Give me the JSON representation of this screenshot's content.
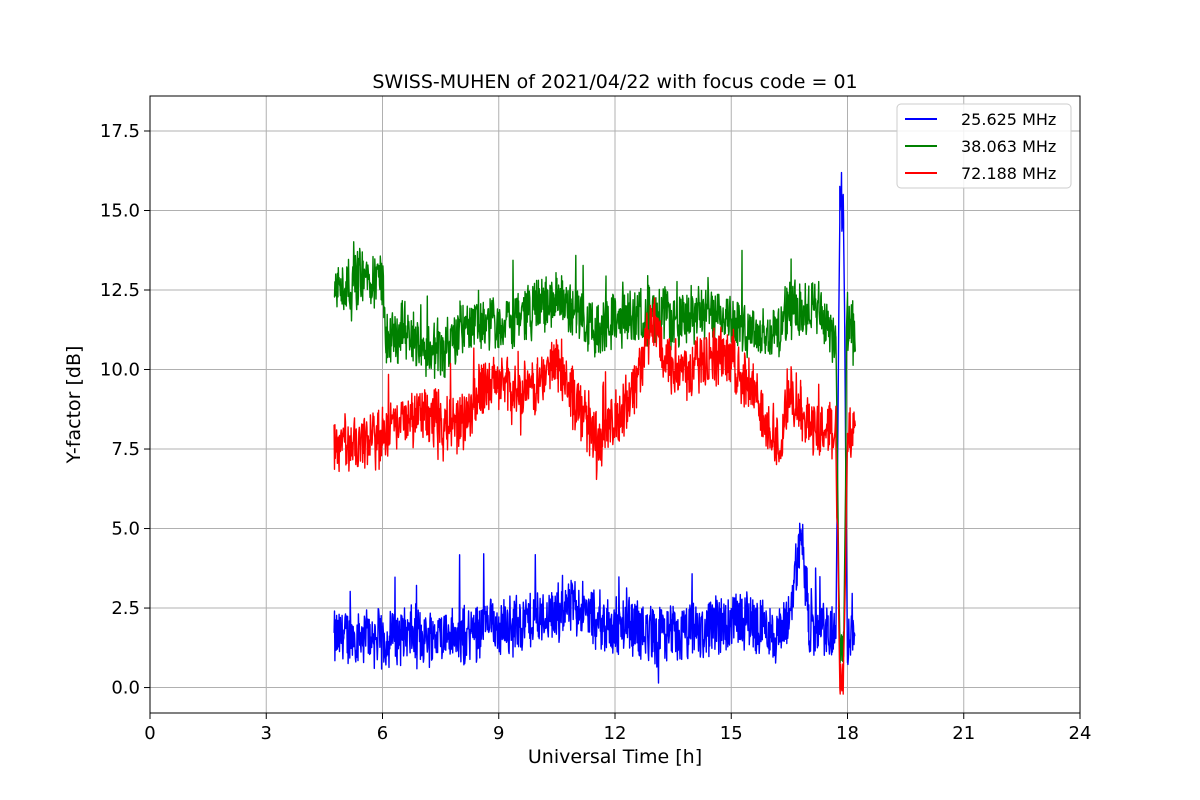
{
  "chart_data": {
    "type": "line",
    "title": "SWISS-MUHEN of 2021/04/22 with focus code = 01",
    "xlabel": "Universal Time [h]",
    "ylabel": "Y-factor [dB]",
    "xlim": [
      0,
      24
    ],
    "ylim": [
      -0.8,
      18.6
    ],
    "xticks": [
      0,
      3,
      6,
      9,
      12,
      15,
      18,
      21,
      24
    ],
    "xtick_labels": [
      "0",
      "3",
      "6",
      "9",
      "12",
      "15",
      "18",
      "21",
      "24"
    ],
    "yticks": [
      0,
      2.5,
      5,
      7.5,
      10,
      12.5,
      15,
      17.5
    ],
    "ytick_labels": [
      "0.0",
      "2.5",
      "5.0",
      "7.5",
      "10.0",
      "12.5",
      "15.0",
      "17.5"
    ],
    "grid": true,
    "legend_position": "top-right",
    "series": [
      {
        "name": "25.625 MHz",
        "color": "#0000ff",
        "x": [
          4.75,
          5.0,
          5.5,
          6.0,
          6.5,
          7.0,
          7.5,
          8.0,
          8.5,
          9.0,
          9.5,
          10.0,
          10.5,
          11.0,
          11.5,
          12.0,
          12.5,
          13.0,
          13.5,
          14.0,
          14.5,
          15.0,
          15.5,
          16.0,
          16.3,
          16.5,
          16.8,
          17.0,
          17.5,
          17.7,
          17.8,
          17.9,
          18.0,
          18.1,
          18.2
        ],
        "y": [
          1.5,
          1.6,
          1.7,
          1.5,
          1.7,
          1.6,
          1.7,
          1.5,
          1.9,
          2.0,
          2.0,
          2.2,
          2.4,
          2.6,
          2.1,
          1.9,
          1.9,
          1.7,
          1.6,
          1.7,
          1.8,
          2.2,
          2.1,
          1.8,
          1.6,
          2.2,
          4.8,
          1.8,
          1.9,
          1.6,
          15.2,
          15.0,
          1.5,
          2.0,
          2.1
        ]
      },
      {
        "name": "38.063 MHz",
        "color": "#008000",
        "x": [
          4.75,
          5.0,
          5.5,
          6.0,
          6.1,
          6.5,
          7.0,
          7.5,
          8.0,
          8.5,
          9.0,
          9.5,
          10.0,
          10.5,
          11.0,
          11.5,
          12.0,
          12.5,
          13.0,
          13.5,
          14.0,
          14.5,
          15.0,
          15.5,
          16.0,
          16.3,
          16.5,
          16.8,
          17.0,
          17.5,
          17.7,
          17.8,
          17.9,
          18.0,
          18.1,
          18.2
        ],
        "y": [
          12.5,
          12.6,
          12.9,
          12.8,
          10.8,
          11.2,
          10.8,
          10.6,
          11.2,
          11.5,
          11.4,
          11.8,
          12.0,
          12.1,
          11.8,
          11.2,
          11.5,
          11.7,
          11.8,
          11.6,
          11.7,
          11.8,
          11.6,
          11.3,
          11.0,
          11.5,
          12.0,
          11.7,
          12.0,
          11.5,
          11.0,
          1.3,
          1.4,
          11.6,
          11.2,
          11.0
        ]
      },
      {
        "name": "72.188 MHz",
        "color": "#ff0000",
        "x": [
          4.75,
          5.0,
          5.5,
          6.0,
          6.5,
          7.0,
          7.5,
          8.0,
          8.5,
          9.0,
          9.5,
          10.0,
          10.5,
          11.0,
          11.5,
          12.0,
          12.5,
          13.0,
          13.5,
          14.0,
          14.5,
          15.0,
          15.5,
          16.0,
          16.3,
          16.5,
          16.8,
          17.0,
          17.5,
          17.7,
          17.8,
          17.9,
          18.0,
          18.1,
          18.2
        ],
        "y": [
          7.5,
          7.6,
          7.5,
          8.0,
          8.3,
          8.6,
          8.3,
          8.4,
          9.2,
          9.6,
          9.2,
          9.5,
          10.3,
          9.0,
          7.8,
          8.3,
          9.5,
          11.5,
          10.0,
          10.0,
          10.5,
          10.2,
          9.5,
          8.2,
          7.5,
          9.5,
          8.5,
          8.3,
          8.2,
          8.0,
          0.6,
          0.7,
          8.0,
          7.9,
          7.8
        ]
      }
    ]
  }
}
